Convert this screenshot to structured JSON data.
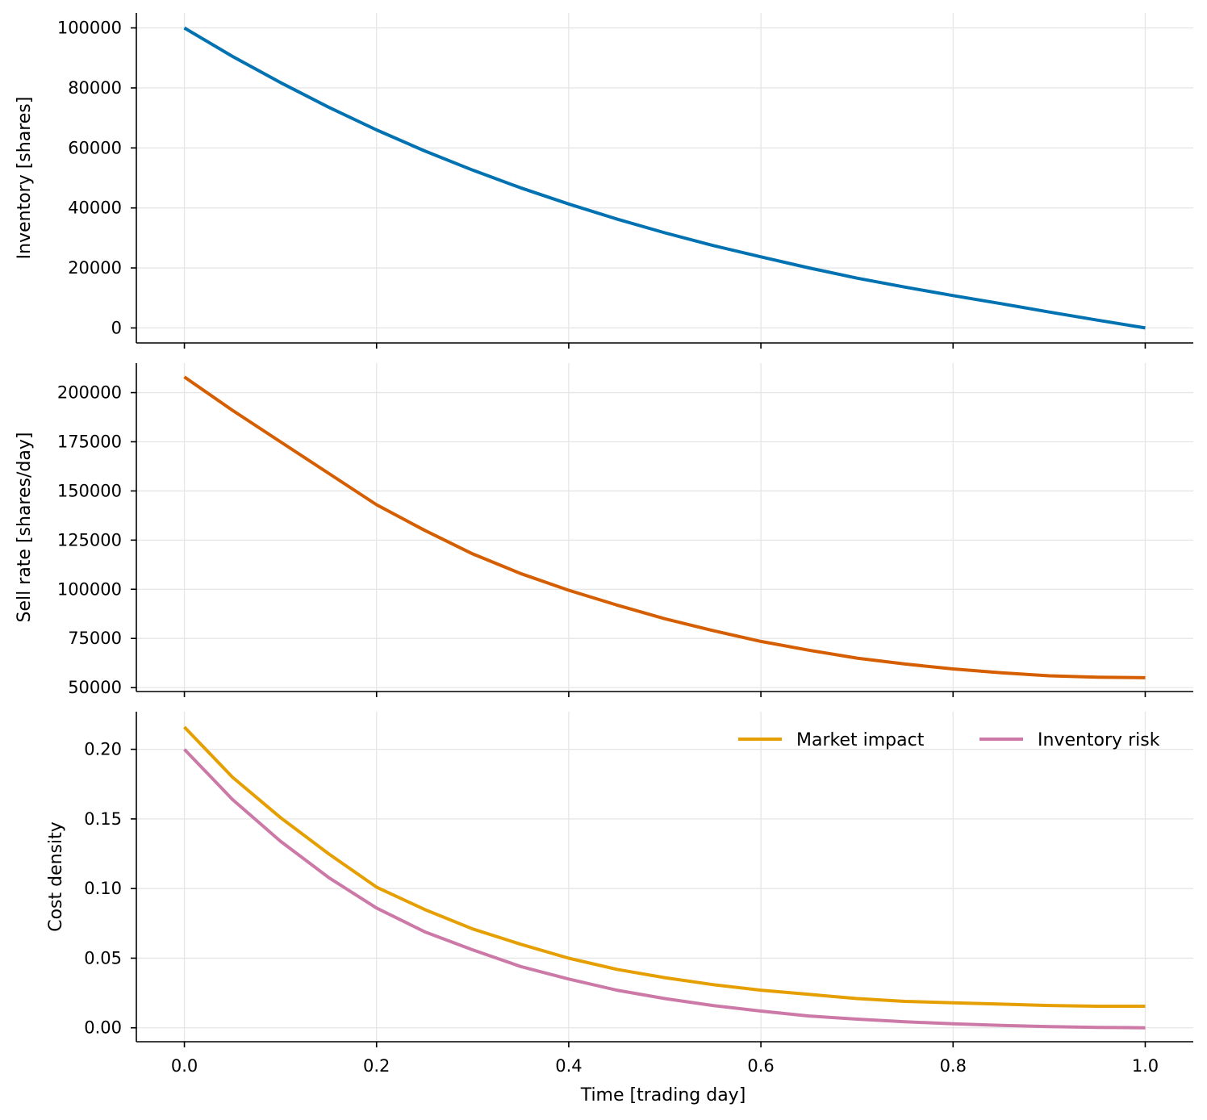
{
  "colors": {
    "inventory": "#0072b2",
    "sell_rate": "#d55e00",
    "market_impact": "#e69f00",
    "inventory_risk": "#cc79a7",
    "grid": "#e6e6e6",
    "axis": "#000000"
  },
  "chart_data": [
    {
      "type": "line",
      "ylabel": "Inventory [shares]",
      "xlim": [
        -0.05,
        1.05
      ],
      "ylim": [
        -5000,
        105000
      ],
      "xticks": [
        0.0,
        0.2,
        0.4,
        0.6,
        0.8,
        1.0
      ],
      "xtick_labels": [
        "",
        "",
        "",
        "",
        "",
        ""
      ],
      "yticks": [
        0,
        20000,
        40000,
        60000,
        80000,
        100000
      ],
      "ytick_labels": [
        "0",
        "20000",
        "40000",
        "60000",
        "80000",
        "100000"
      ],
      "grid": true,
      "x": [
        0.0,
        0.05,
        0.1,
        0.15,
        0.2,
        0.25,
        0.3,
        0.35,
        0.4,
        0.45,
        0.5,
        0.55,
        0.6,
        0.65,
        0.7,
        0.75,
        0.8,
        0.85,
        0.9,
        0.95,
        1.0
      ],
      "series": [
        {
          "color_key": "inventory",
          "values": [
            100000,
            90500,
            81800,
            73600,
            66000,
            59000,
            52600,
            46700,
            41300,
            36300,
            31700,
            27500,
            23700,
            20000,
            16600,
            13600,
            10800,
            8100,
            5300,
            2600,
            0
          ]
        }
      ]
    },
    {
      "type": "line",
      "ylabel": "Sell rate [shares/day]",
      "xlim": [
        -0.05,
        1.05
      ],
      "ylim": [
        48000,
        215000
      ],
      "xticks": [
        0.0,
        0.2,
        0.4,
        0.6,
        0.8,
        1.0
      ],
      "xtick_labels": [
        "",
        "",
        "",
        "",
        "",
        ""
      ],
      "yticks": [
        50000,
        75000,
        100000,
        125000,
        150000,
        175000,
        200000
      ],
      "ytick_labels": [
        "50000",
        "75000",
        "100000",
        "125000",
        "150000",
        "175000",
        "200000"
      ],
      "grid": true,
      "x": [
        0.0,
        0.05,
        0.1,
        0.15,
        0.2,
        0.25,
        0.3,
        0.35,
        0.4,
        0.45,
        0.5,
        0.55,
        0.6,
        0.65,
        0.7,
        0.75,
        0.8,
        0.85,
        0.9,
        0.95,
        1.0
      ],
      "series": [
        {
          "color_key": "sell_rate",
          "values": [
            208000,
            191000,
            175000,
            159000,
            143000,
            130000,
            118000,
            108000,
            99500,
            92000,
            85000,
            79000,
            73500,
            69000,
            65000,
            62000,
            59500,
            57500,
            56000,
            55300,
            55000
          ]
        }
      ]
    },
    {
      "type": "line",
      "xlabel": "Time [trading day]",
      "ylabel": "Cost density",
      "xlim": [
        -0.05,
        1.05
      ],
      "ylim": [
        -0.01,
        0.227
      ],
      "xticks": [
        0.0,
        0.2,
        0.4,
        0.6,
        0.8,
        1.0
      ],
      "xtick_labels": [
        "0.0",
        "0.2",
        "0.4",
        "0.6",
        "0.8",
        "1.0"
      ],
      "yticks": [
        0.0,
        0.05,
        0.1,
        0.15,
        0.2
      ],
      "ytick_labels": [
        "0.00",
        "0.05",
        "0.10",
        "0.15",
        "0.20"
      ],
      "grid": true,
      "legend": "top-right",
      "x": [
        0.0,
        0.05,
        0.1,
        0.15,
        0.2,
        0.25,
        0.3,
        0.35,
        0.4,
        0.45,
        0.5,
        0.55,
        0.6,
        0.65,
        0.7,
        0.75,
        0.8,
        0.85,
        0.9,
        0.95,
        1.0
      ],
      "series": [
        {
          "name": "Market impact",
          "color_key": "market_impact",
          "values": [
            0.216,
            0.18,
            0.151,
            0.125,
            0.101,
            0.085,
            0.071,
            0.06,
            0.05,
            0.042,
            0.036,
            0.031,
            0.027,
            0.024,
            0.021,
            0.019,
            0.018,
            0.017,
            0.016,
            0.0155,
            0.0155
          ]
        },
        {
          "name": "Inventory risk",
          "color_key": "inventory_risk",
          "values": [
            0.2,
            0.164,
            0.134,
            0.108,
            0.086,
            0.069,
            0.056,
            0.044,
            0.035,
            0.027,
            0.021,
            0.016,
            0.012,
            0.0085,
            0.0062,
            0.0043,
            0.0029,
            0.0017,
            0.0009,
            0.0003,
            0.0
          ]
        }
      ]
    }
  ]
}
